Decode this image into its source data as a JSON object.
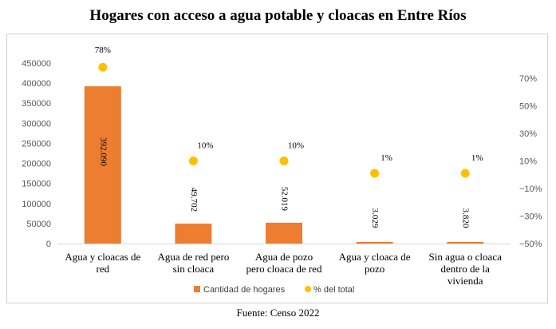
{
  "chart_data": {
    "type": "bar",
    "title": "Hogares con acceso a agua potable y cloacas en Entre Ríos",
    "categories": [
      [
        "Agua y cloacas de",
        "red"
      ],
      [
        "Agua de red pero",
        "sin cloaca"
      ],
      [
        "Agua de pozo",
        "pero cloaca de red"
      ],
      [
        "Agua y cloaca de",
        "pozo"
      ],
      [
        "Sin agua o cloaca",
        "dentro de la",
        "vivienda"
      ]
    ],
    "series": [
      {
        "name": "Cantidad de hogares",
        "axis": "left",
        "color": "#ED7D31",
        "values": [
          392090,
          49702,
          52019,
          3029,
          3820
        ],
        "labels": [
          "392.090",
          "49.702",
          "52.019",
          "3.029",
          "3.820"
        ]
      },
      {
        "name": "% del total",
        "axis": "right",
        "color": "#FFC000",
        "marker": "circle",
        "values": [
          78,
          10,
          10,
          1,
          1
        ],
        "labels": [
          "78%",
          "10%",
          "10%",
          "1%",
          "1%"
        ]
      }
    ],
    "y_left": {
      "ylim": [
        0,
        450000
      ],
      "ticks": [
        0,
        50000,
        100000,
        150000,
        200000,
        250000,
        300000,
        350000,
        400000,
        450000
      ],
      "tick_labels": [
        "0",
        "50000",
        "100000",
        "150000",
        "200000",
        "250000",
        "300000",
        "350000",
        "400000",
        "450000"
      ]
    },
    "y_right": {
      "ylim": [
        -50,
        80
      ],
      "ticks": [
        -50,
        -30,
        -10,
        10,
        30,
        50,
        70
      ],
      "tick_labels": [
        "−50%",
        "−30%",
        "−10%",
        "10%",
        "30%",
        "50%",
        "70%"
      ]
    },
    "grid": false,
    "legend_position": "bottom",
    "legend": [
      "Cantidad de hogares",
      "% del total"
    ],
    "source": "Fuente: Censo 2022"
  }
}
